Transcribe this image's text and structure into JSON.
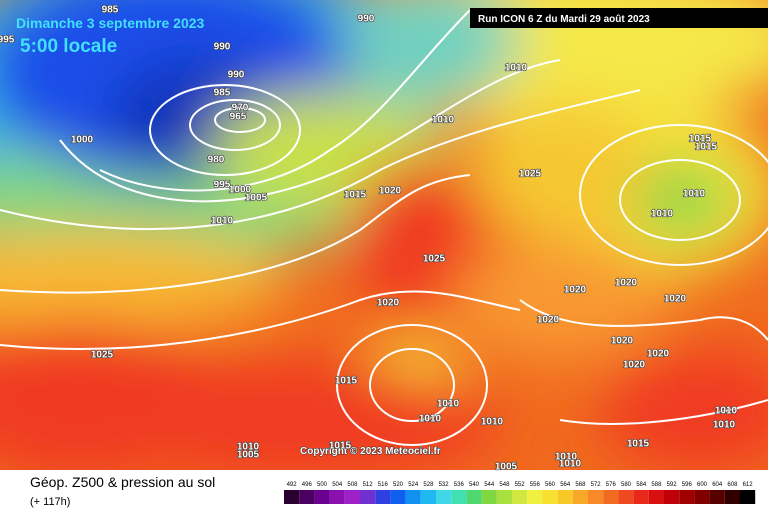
{
  "header": {
    "date": "Dimanche 3 septembre 2023",
    "time": "5:00 locale",
    "run": "Run ICON 6 Z du Mardi 29 août 2023"
  },
  "footer": {
    "title": "Géop. Z500 & pression au sol",
    "lead": "(+ 117h)",
    "copyright": "Copyright © 2023 Meteociel.fr"
  },
  "isobar_labels": [
    "985",
    "990",
    "990",
    "990",
    "985",
    "970",
    "965",
    "1000",
    "980",
    "995",
    "1000",
    "1005",
    "1010",
    "1010",
    "1010",
    "1015",
    "1020",
    "1025",
    "1025",
    "1020",
    "1020",
    "1020",
    "1020",
    "1020",
    "1020",
    "1020",
    "1020",
    "1015",
    "1015",
    "1010",
    "1010",
    "1025",
    "1015",
    "1010",
    "1010",
    "1010",
    "1010",
    "1005",
    "1015",
    "1015",
    "1010",
    "1010",
    "1010",
    "1010",
    "1005",
    "995"
  ],
  "legend": {
    "values": [
      492,
      496,
      500,
      504,
      508,
      512,
      516,
      520,
      524,
      528,
      532,
      536,
      540,
      544,
      548,
      552,
      556,
      560,
      564,
      568,
      572,
      576,
      580,
      584,
      588,
      592,
      596,
      600,
      604,
      608,
      612
    ],
    "colors": [
      "#2a0030",
      "#4a0060",
      "#6a0090",
      "#8a10b0",
      "#a020c8",
      "#7030d0",
      "#3040e0",
      "#1060f0",
      "#1090f0",
      "#20b8f0",
      "#40d8e8",
      "#40e0b0",
      "#50d870",
      "#80d840",
      "#a8e040",
      "#d0e840",
      "#f0f040",
      "#f8e030",
      "#f8c828",
      "#f8a828",
      "#f88828",
      "#f06a20",
      "#f04820",
      "#e82818",
      "#d81010",
      "#c00008",
      "#a00000",
      "#800000",
      "#580000",
      "#300000",
      "#000000"
    ]
  }
}
